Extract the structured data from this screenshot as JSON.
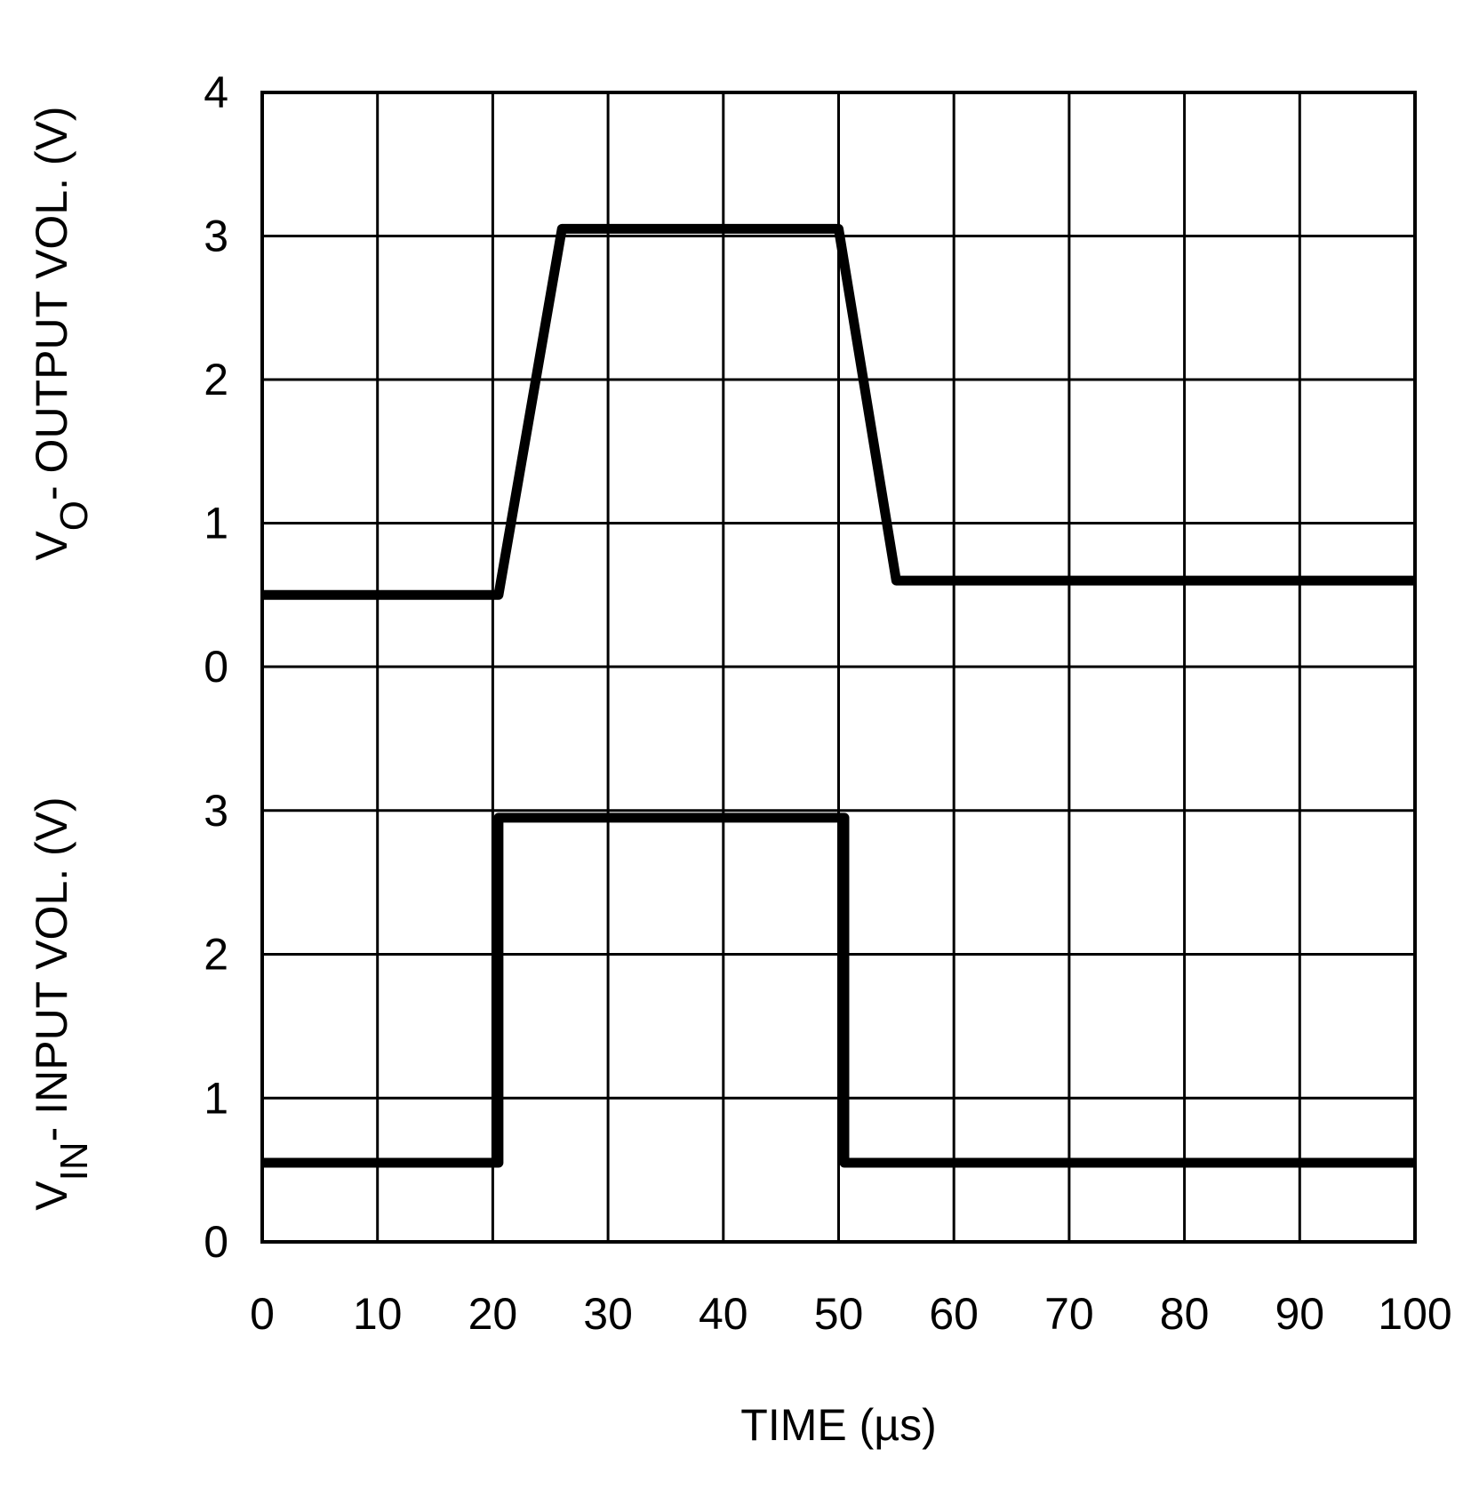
{
  "chart_data": [
    {
      "type": "line",
      "ylabel": [
        "V",
        "O",
        "- OUTPUT VOL. (V)"
      ],
      "x": [
        0,
        20.5,
        26,
        50,
        55,
        100
      ],
      "values": [
        0.5,
        0.5,
        3.05,
        3.05,
        0.6,
        0.6
      ],
      "color": "#000000",
      "xlim": [
        0,
        100
      ],
      "xticks": [
        0,
        10,
        20,
        30,
        40,
        50,
        60,
        70,
        80,
        90,
        100
      ],
      "ylim": [
        0,
        4
      ],
      "yticks": [
        0,
        1,
        2,
        3,
        4
      ],
      "grid": true
    },
    {
      "type": "line",
      "ylabel": [
        "V",
        "IN",
        "- INPUT VOL. (V)"
      ],
      "xlabel": "TIME (µs)",
      "x": [
        0,
        20.5,
        20.5,
        50.5,
        50.5,
        100
      ],
      "values": [
        0.55,
        0.55,
        2.95,
        2.95,
        0.55,
        0.55
      ],
      "color": "#000000",
      "xlim": [
        0,
        100
      ],
      "xticks": [
        0,
        10,
        20,
        30,
        40,
        50,
        60,
        70,
        80,
        90,
        100
      ],
      "ylim": [
        0,
        4
      ],
      "yticks": [
        0,
        1,
        2,
        3
      ],
      "grid": true
    }
  ]
}
